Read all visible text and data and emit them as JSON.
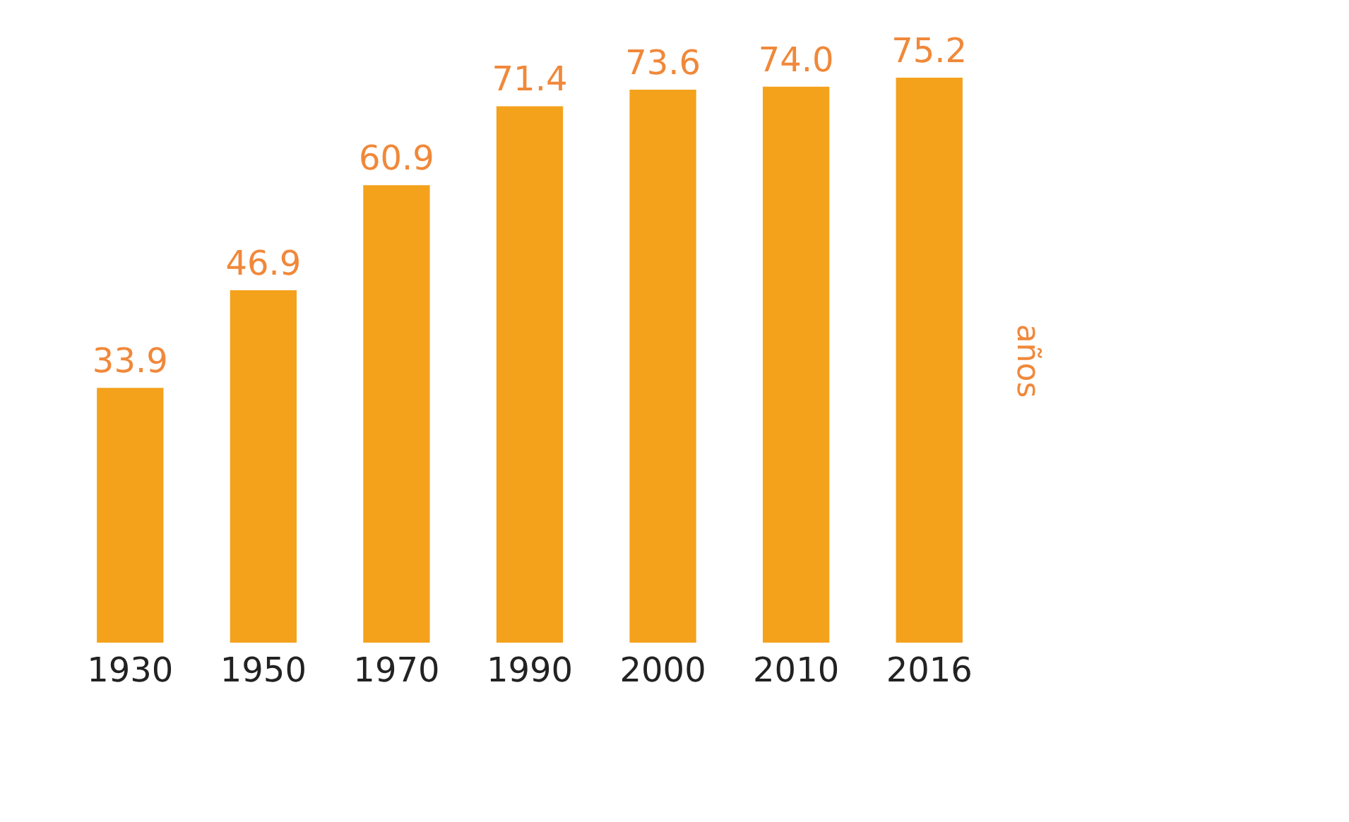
{
  "chart_data": {
    "type": "bar",
    "ylabel": "años",
    "categories": [
      "1930",
      "1950",
      "1970",
      "1990",
      "2000",
      "2010",
      "2016"
    ],
    "values": [
      33.9,
      46.9,
      60.9,
      71.4,
      73.6,
      74.0,
      75.2
    ],
    "value_labels": [
      "33.9",
      "46.9",
      "60.9",
      "71.4",
      "73.6",
      "74.0",
      "75.2"
    ],
    "color": "#f4a11c"
  }
}
